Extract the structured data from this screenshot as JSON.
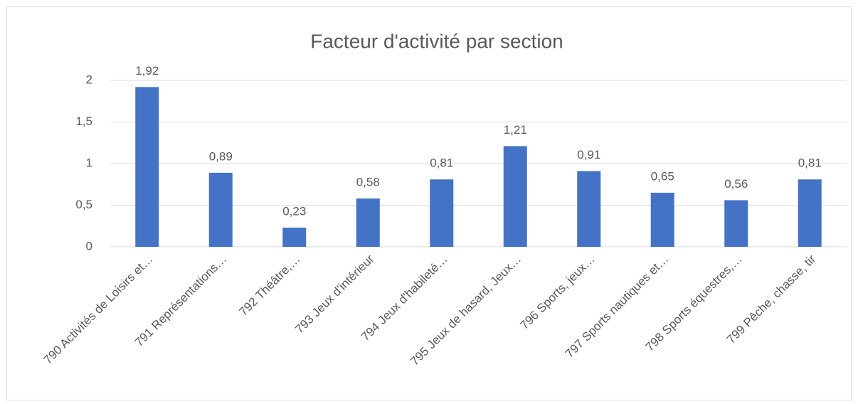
{
  "chart_data": {
    "type": "bar",
    "title": "Facteur d'activité par section",
    "categories": [
      "790 Activités de Loisirs et…",
      "791 Représentations…",
      "792 Théâtre,…",
      "793 Jeux d'intérieur",
      "794 Jeux d'habileté…",
      "795 Jeux de hasard, Jeux…",
      "796 Sports, jeux…",
      "797 Sports nautiques et…",
      "798 Sports équestres,…",
      "799 Pêche, chasse, tir"
    ],
    "values": [
      1.92,
      0.89,
      0.23,
      0.58,
      0.81,
      1.21,
      0.91,
      0.65,
      0.56,
      0.81
    ],
    "value_labels": [
      "1,92",
      "0,89",
      "0,23",
      "0,58",
      "0,81",
      "1,21",
      "0,91",
      "0,65",
      "0,56",
      "0,81"
    ],
    "color": "#4472c4",
    "ylim": [
      0,
      2
    ],
    "yticks": [
      0,
      {
        "value": 0.5,
        "label": "0,5"
      },
      1,
      {
        "value": 1.5,
        "label": "1,5"
      },
      2
    ],
    "grid": true
  }
}
